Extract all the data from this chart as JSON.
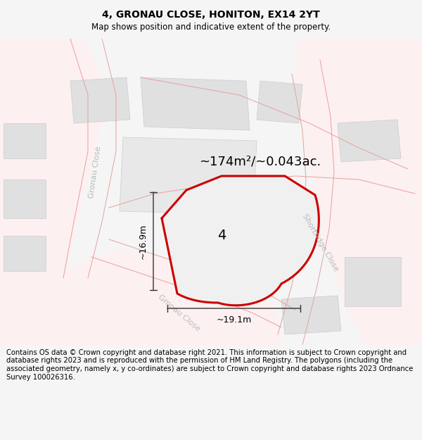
{
  "title": "4, GRONAU CLOSE, HONITON, EX14 2YT",
  "subtitle": "Map shows position and indicative extent of the property.",
  "footer": "Contains OS data © Crown copyright and database right 2021. This information is subject to Crown copyright and database rights 2023 and is reproduced with the permission of HM Land Registry. The polygons (including the associated geometry, namely x, y co-ordinates) are subject to Crown copyright and database rights 2023 Ordnance Survey 100026316.",
  "area_label": "~174m²/~0.043ac.",
  "plot_number": "4",
  "dim_width": "~19.1m",
  "dim_height": "~16.9m",
  "street_label_left": "Gronau Close",
  "street_label_bottom": "Gronau Close",
  "street_label_right": "Shortridge Close",
  "bg_color": "#f5f5f5",
  "map_bg": "#ffffff",
  "plot_edge_color": "#cc0000",
  "road_line_color": "#e8a0a0",
  "building_color": "#e0e0e0",
  "building_edge": "#cccccc",
  "street_text_color": "#bbbbbb",
  "title_fontsize": 10,
  "subtitle_fontsize": 8.5,
  "footer_fontsize": 7.2,
  "area_fontsize": 13,
  "plot_num_fontsize": 14,
  "street_fontsize": 8,
  "dim_fontsize": 9
}
